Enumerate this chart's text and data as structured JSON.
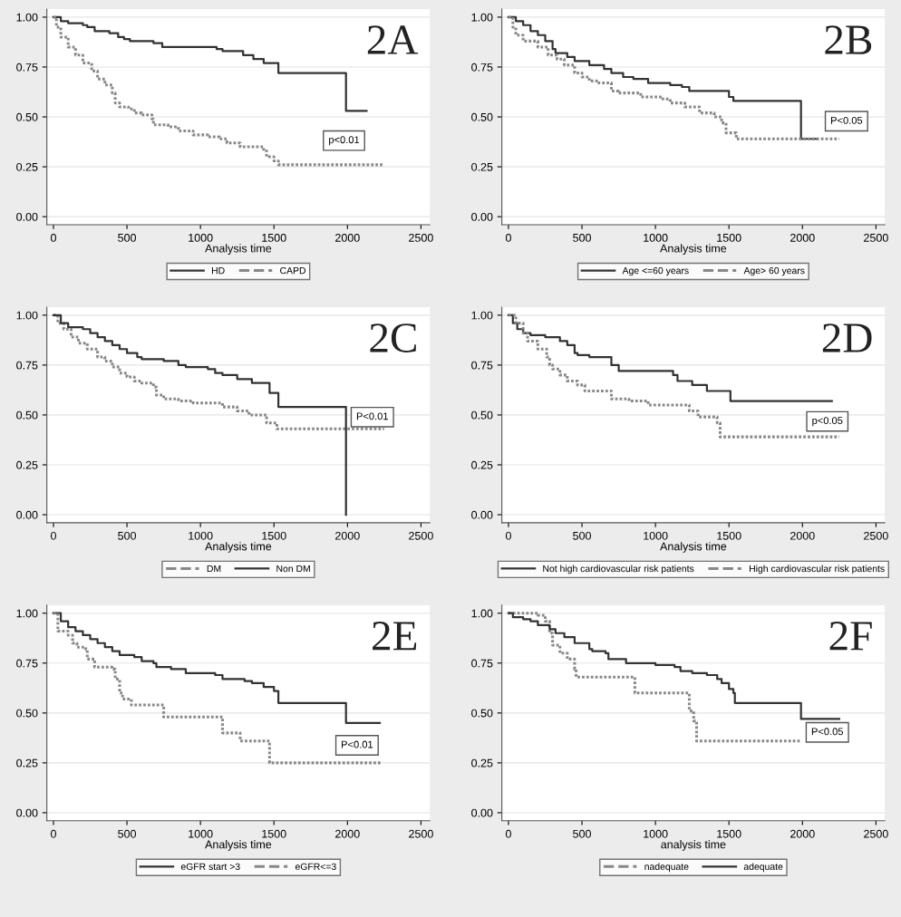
{
  "chart_data": [
    {
      "type": "step",
      "title": "2A",
      "xlabel": "Analysis time",
      "xlim": [
        -45,
        2560
      ],
      "ylim": [
        -0.04,
        1.04
      ],
      "xticks": [
        0,
        500,
        1000,
        1500,
        2000,
        2500
      ],
      "yticks": [
        {
          "value": 0,
          "label": "0.00"
        },
        {
          "value": 0.25,
          "label": "0.25"
        },
        {
          "value": 0.5,
          "label": "0.50"
        },
        {
          "value": 0.75,
          "label": "0.75"
        },
        {
          "value": 1,
          "label": "1.00"
        }
      ],
      "grid": "y",
      "legend": "bottom",
      "annotations": [
        "p<0.01"
      ],
      "series": [
        {
          "name": "HD",
          "color": "#333333",
          "line_style": "solid",
          "x": [
            0,
            50,
            100,
            200,
            230,
            280,
            380,
            440,
            480,
            520,
            680,
            740,
            1110,
            1150,
            1290,
            1360,
            1430,
            1530,
            1990,
            2130
          ],
          "values": [
            1.0,
            0.98,
            0.97,
            0.96,
            0.95,
            0.93,
            0.92,
            0.9,
            0.89,
            0.88,
            0.87,
            0.85,
            0.84,
            0.83,
            0.81,
            0.79,
            0.77,
            0.72,
            0.53,
            0.53
          ]
        },
        {
          "name": "CAPD",
          "color": "#888888",
          "line_style": "dotted",
          "x": [
            0,
            20,
            50,
            100,
            150,
            200,
            260,
            300,
            350,
            400,
            420,
            450,
            510,
            550,
            600,
            670,
            680,
            780,
            850,
            950,
            1050,
            1130,
            1180,
            1270,
            1430,
            1450,
            1500,
            1530,
            2250
          ],
          "values": [
            1.0,
            0.95,
            0.9,
            0.85,
            0.81,
            0.77,
            0.73,
            0.69,
            0.66,
            0.62,
            0.57,
            0.55,
            0.54,
            0.52,
            0.51,
            0.49,
            0.46,
            0.45,
            0.43,
            0.41,
            0.4,
            0.39,
            0.37,
            0.35,
            0.33,
            0.3,
            0.28,
            0.26,
            0.26
          ]
        }
      ]
    },
    {
      "type": "step",
      "title": "2B",
      "xlabel": "Analysis time",
      "xlim": [
        -45,
        2560
      ],
      "ylim": [
        -0.04,
        1.04
      ],
      "xticks": [
        0,
        500,
        1000,
        1500,
        2000,
        2500
      ],
      "yticks": [
        {
          "value": 0,
          "label": "0.00"
        },
        {
          "value": 0.25,
          "label": "0.25"
        },
        {
          "value": 0.5,
          "label": "0.50"
        },
        {
          "value": 0.75,
          "label": "0.75"
        },
        {
          "value": 1,
          "label": "1.00"
        }
      ],
      "grid": "y",
      "legend": "bottom",
      "annotations": [
        "P<0.05"
      ],
      "series": [
        {
          "name": "Age <=60 years",
          "color": "#333333",
          "line_style": "solid",
          "x": [
            0,
            50,
            100,
            150,
            200,
            250,
            300,
            320,
            400,
            450,
            550,
            650,
            700,
            780,
            850,
            950,
            1100,
            1180,
            1230,
            1500,
            1530,
            1990,
            2100
          ],
          "values": [
            1.0,
            0.98,
            0.96,
            0.93,
            0.91,
            0.88,
            0.84,
            0.82,
            0.8,
            0.78,
            0.76,
            0.74,
            0.72,
            0.7,
            0.69,
            0.67,
            0.66,
            0.65,
            0.63,
            0.6,
            0.58,
            0.39,
            0.39
          ]
        },
        {
          "name": "Age> 60 years",
          "color": "#888888",
          "line_style": "dotted",
          "x": [
            0,
            30,
            50,
            100,
            200,
            270,
            330,
            380,
            450,
            500,
            550,
            600,
            700,
            750,
            900,
            1050,
            1100,
            1200,
            1300,
            1400,
            1450,
            1480,
            1550,
            2250
          ],
          "values": [
            1.0,
            0.95,
            0.91,
            0.88,
            0.85,
            0.81,
            0.79,
            0.76,
            0.72,
            0.7,
            0.68,
            0.67,
            0.63,
            0.62,
            0.6,
            0.59,
            0.57,
            0.55,
            0.52,
            0.5,
            0.47,
            0.42,
            0.39,
            0.39
          ]
        }
      ]
    },
    {
      "type": "step",
      "title": "2C",
      "xlabel": "Analysis time",
      "xlim": [
        -45,
        2560
      ],
      "ylim": [
        -0.04,
        1.04
      ],
      "xticks": [
        0,
        500,
        1000,
        1500,
        2000,
        2500
      ],
      "yticks": [
        {
          "value": 0,
          "label": "0.00"
        },
        {
          "value": 0.25,
          "label": "0.25"
        },
        {
          "value": 0.5,
          "label": "0.50"
        },
        {
          "value": 0.75,
          "label": "0.75"
        },
        {
          "value": 1,
          "label": "1.00"
        }
      ],
      "grid": "y",
      "legend": "bottom",
      "annotations": [
        "P<0.01"
      ],
      "series": [
        {
          "name": "DM",
          "color": "#888888",
          "line_style": "dotted",
          "x": [
            0,
            30,
            70,
            120,
            170,
            230,
            300,
            350,
            400,
            450,
            500,
            550,
            600,
            680,
            700,
            750,
            850,
            950,
            1150,
            1250,
            1330,
            1450,
            1520,
            2250
          ],
          "values": [
            1.0,
            0.96,
            0.93,
            0.89,
            0.86,
            0.83,
            0.79,
            0.77,
            0.74,
            0.71,
            0.69,
            0.67,
            0.66,
            0.64,
            0.6,
            0.58,
            0.57,
            0.56,
            0.54,
            0.52,
            0.5,
            0.46,
            0.43,
            0.43
          ]
        },
        {
          "name": "Non DM",
          "color": "#333333",
          "line_style": "solid",
          "x": [
            0,
            50,
            100,
            200,
            250,
            300,
            350,
            400,
            450,
            500,
            570,
            600,
            750,
            850,
            900,
            1050,
            1100,
            1150,
            1250,
            1350,
            1470,
            1530,
            1990
          ],
          "values": [
            1.0,
            0.96,
            0.94,
            0.93,
            0.91,
            0.89,
            0.87,
            0.85,
            0.83,
            0.81,
            0.79,
            0.78,
            0.77,
            0.75,
            0.74,
            0.73,
            0.71,
            0.7,
            0.68,
            0.66,
            0.61,
            0.54,
            0.0
          ]
        }
      ]
    },
    {
      "type": "step",
      "title": "2D",
      "xlabel": "Analysis time",
      "xlim": [
        -45,
        2560
      ],
      "ylim": [
        -0.04,
        1.04
      ],
      "xticks": [
        0,
        500,
        1000,
        1500,
        2000,
        2500
      ],
      "yticks": [
        {
          "value": 0,
          "label": "0.00"
        },
        {
          "value": 0.25,
          "label": "0.25"
        },
        {
          "value": 0.5,
          "label": "0.50"
        },
        {
          "value": 0.75,
          "label": "0.75"
        },
        {
          "value": 1,
          "label": "1.00"
        }
      ],
      "grid": "y",
      "legend": "bottom",
      "annotations": [
        "p<0.05"
      ],
      "series": [
        {
          "name": "Not high cardiovascular risk patients",
          "color": "#333333",
          "line_style": "solid",
          "x": [
            0,
            30,
            60,
            100,
            150,
            250,
            350,
            400,
            450,
            470,
            550,
            700,
            750,
            1120,
            1150,
            1250,
            1350,
            1510,
            2200
          ],
          "values": [
            1.0,
            0.96,
            0.93,
            0.91,
            0.9,
            0.89,
            0.87,
            0.85,
            0.81,
            0.8,
            0.79,
            0.75,
            0.72,
            0.7,
            0.67,
            0.65,
            0.62,
            0.57,
            0.57
          ]
        },
        {
          "name": "High cardiovascular risk patients",
          "color": "#888888",
          "line_style": "dotted",
          "x": [
            0,
            50,
            100,
            130,
            200,
            260,
            280,
            300,
            350,
            400,
            470,
            520,
            700,
            820,
            950,
            1230,
            1290,
            1420,
            1440,
            2250
          ],
          "values": [
            1.0,
            0.96,
            0.91,
            0.87,
            0.83,
            0.79,
            0.75,
            0.73,
            0.7,
            0.67,
            0.65,
            0.62,
            0.58,
            0.57,
            0.55,
            0.52,
            0.49,
            0.46,
            0.39,
            0.39
          ]
        }
      ]
    },
    {
      "type": "step",
      "title": "2E",
      "xlabel": "Analysis time",
      "xlim": [
        -45,
        2560
      ],
      "ylim": [
        -0.04,
        1.04
      ],
      "xticks": [
        0,
        500,
        1000,
        1500,
        2000,
        2500
      ],
      "yticks": [
        {
          "value": 0,
          "label": "0.00"
        },
        {
          "value": 0.25,
          "label": "0.25"
        },
        {
          "value": 0.5,
          "label": "0.50"
        },
        {
          "value": 0.75,
          "label": "0.75"
        },
        {
          "value": 1,
          "label": "1.00"
        }
      ],
      "grid": "y",
      "legend": "bottom",
      "annotations": [
        "P<0.01"
      ],
      "series": [
        {
          "name": "eGFR start >3",
          "color": "#333333",
          "line_style": "solid",
          "x": [
            0,
            50,
            100,
            150,
            200,
            250,
            300,
            350,
            400,
            450,
            550,
            600,
            680,
            700,
            800,
            900,
            1100,
            1150,
            1300,
            1350,
            1430,
            1500,
            1530,
            1990,
            2220
          ],
          "values": [
            1.0,
            0.96,
            0.93,
            0.91,
            0.89,
            0.87,
            0.85,
            0.83,
            0.81,
            0.79,
            0.78,
            0.76,
            0.75,
            0.73,
            0.72,
            0.7,
            0.69,
            0.67,
            0.66,
            0.65,
            0.63,
            0.61,
            0.55,
            0.45,
            0.45
          ]
        },
        {
          "name": "eGFR<=3",
          "color": "#888888",
          "line_style": "dotted",
          "x": [
            0,
            30,
            100,
            130,
            160,
            220,
            230,
            280,
            400,
            420,
            450,
            470,
            530,
            750,
            1150,
            1270,
            1470,
            2230
          ],
          "values": [
            1.0,
            0.91,
            0.89,
            0.85,
            0.83,
            0.82,
            0.77,
            0.73,
            0.72,
            0.67,
            0.6,
            0.57,
            0.54,
            0.48,
            0.4,
            0.36,
            0.25,
            0.25
          ]
        }
      ]
    },
    {
      "type": "step",
      "title": "2F",
      "xlabel": "analysis time",
      "xlim": [
        -45,
        2560
      ],
      "ylim": [
        -0.04,
        1.04
      ],
      "xticks": [
        0,
        500,
        1000,
        1500,
        2000,
        2500
      ],
      "yticks": [
        {
          "value": 0,
          "label": "0.00"
        },
        {
          "value": 0.25,
          "label": "0.25"
        },
        {
          "value": 0.5,
          "label": "0.50"
        },
        {
          "value": 0.75,
          "label": "0.75"
        },
        {
          "value": 1,
          "label": "1.00"
        }
      ],
      "grid": "y",
      "legend": "bottom",
      "annotations": [
        "P<0.05"
      ],
      "series": [
        {
          "name": "nadequate",
          "color": "#888888",
          "line_style": "dotted",
          "x": [
            0,
            200,
            250,
            280,
            300,
            350,
            400,
            450,
            460,
            860,
            1230,
            1260,
            1280,
            1990
          ],
          "values": [
            1.0,
            0.99,
            0.96,
            0.9,
            0.84,
            0.8,
            0.77,
            0.72,
            0.68,
            0.6,
            0.51,
            0.46,
            0.36,
            0.36
          ]
        },
        {
          "name": "adequate",
          "color": "#333333",
          "line_style": "solid",
          "x": [
            0,
            30,
            100,
            150,
            200,
            280,
            320,
            380,
            450,
            550,
            570,
            660,
            680,
            800,
            900,
            1000,
            1130,
            1170,
            1250,
            1350,
            1420,
            1450,
            1500,
            1530,
            1540,
            1990,
            2250
          ],
          "values": [
            1.0,
            0.98,
            0.97,
            0.96,
            0.94,
            0.92,
            0.9,
            0.88,
            0.85,
            0.82,
            0.81,
            0.8,
            0.77,
            0.75,
            0.75,
            0.74,
            0.73,
            0.71,
            0.7,
            0.69,
            0.67,
            0.65,
            0.62,
            0.6,
            0.55,
            0.47,
            0.47
          ]
        }
      ]
    }
  ]
}
